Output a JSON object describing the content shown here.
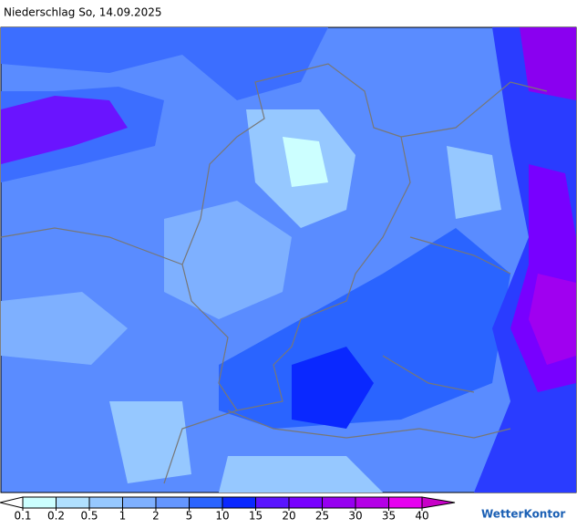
{
  "header": {
    "title": "Niederschlag So, 14.09.2025"
  },
  "legend": {
    "ticks": [
      0.1,
      0.2,
      0.5,
      1,
      2,
      5,
      10,
      15,
      20,
      25,
      30,
      35,
      40
    ],
    "colors": [
      "#ffffff",
      "#ccffff",
      "#b0e0ff",
      "#96c8ff",
      "#7eb0ff",
      "#6496ff",
      "#2a64ff",
      "#0a28ff",
      "#5a14ff",
      "#7800ff",
      "#9600f0",
      "#b400e6",
      "#e600f0",
      "#c800c8"
    ]
  },
  "brand": "WetterKontor"
}
